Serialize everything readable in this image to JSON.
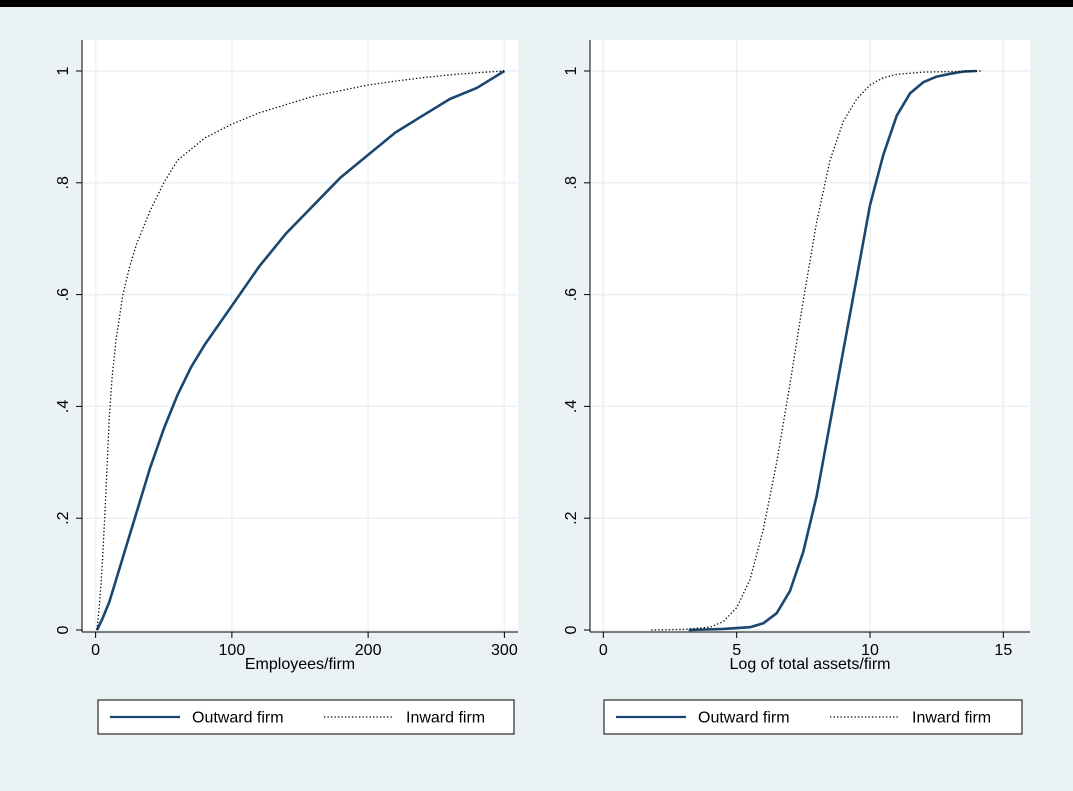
{
  "colors": {
    "outer_background": "#eaf2f3",
    "plot_background": "#ffffff",
    "grid": "#eaf2f3",
    "outward_line": "#1a476f",
    "inward_line": "#000000"
  },
  "chart_data": [
    {
      "type": "line",
      "title": "",
      "xlabel": "Employees/firm",
      "ylabel": "",
      "xlim": [
        -10,
        310
      ],
      "ylim": [
        0,
        1
      ],
      "x_ticks": [
        0,
        100,
        200,
        300
      ],
      "x_tick_labels": [
        "0",
        "100",
        "200",
        "300"
      ],
      "y_ticks": [
        0,
        0.2,
        0.4,
        0.6,
        0.8,
        1
      ],
      "y_tick_labels": [
        "0",
        ".2",
        ".4",
        ".6",
        ".8",
        "1"
      ],
      "grid": true,
      "legend_position": "bottom",
      "series": [
        {
          "name": "Outward firm",
          "style": "solid",
          "x": [
            1,
            5,
            10,
            15,
            20,
            25,
            30,
            40,
            50,
            60,
            70,
            80,
            100,
            120,
            140,
            160,
            180,
            200,
            220,
            240,
            260,
            280,
            300
          ],
          "y": [
            0,
            0.02,
            0.05,
            0.09,
            0.13,
            0.17,
            0.21,
            0.29,
            0.36,
            0.42,
            0.47,
            0.51,
            0.58,
            0.65,
            0.71,
            0.76,
            0.81,
            0.85,
            0.89,
            0.92,
            0.95,
            0.97,
            1.0
          ]
        },
        {
          "name": "Inward firm",
          "style": "dotted",
          "x": [
            1,
            3,
            5,
            7,
            10,
            12,
            15,
            20,
            25,
            30,
            40,
            50,
            60,
            70,
            80,
            100,
            120,
            140,
            160,
            180,
            200,
            220,
            240,
            260,
            280,
            300
          ],
          "y": [
            0,
            0.05,
            0.12,
            0.22,
            0.38,
            0.45,
            0.52,
            0.6,
            0.65,
            0.69,
            0.75,
            0.8,
            0.84,
            0.86,
            0.88,
            0.905,
            0.925,
            0.94,
            0.955,
            0.965,
            0.975,
            0.982,
            0.988,
            0.993,
            0.997,
            1.0
          ]
        }
      ]
    },
    {
      "type": "line",
      "title": "",
      "xlabel": "Log of total assets/firm",
      "ylabel": "",
      "xlim": [
        -0.5,
        16
      ],
      "ylim": [
        0,
        1
      ],
      "x_ticks": [
        0,
        5,
        10,
        15
      ],
      "x_tick_labels": [
        "0",
        "5",
        "10",
        "15"
      ],
      "y_ticks": [
        0,
        0.2,
        0.4,
        0.6,
        0.8,
        1
      ],
      "y_tick_labels": [
        "0",
        ".2",
        ".4",
        ".6",
        ".8",
        "1"
      ],
      "grid": true,
      "legend_position": "bottom",
      "series": [
        {
          "name": "Outward firm",
          "style": "solid",
          "x": [
            3.2,
            4.5,
            5.5,
            6.0,
            6.5,
            7.0,
            7.5,
            8.0,
            8.5,
            9.0,
            9.5,
            10.0,
            10.5,
            11.0,
            11.5,
            12.0,
            12.5,
            13.0,
            13.5,
            14.0
          ],
          "y": [
            0,
            0.002,
            0.005,
            0.012,
            0.03,
            0.07,
            0.14,
            0.24,
            0.37,
            0.5,
            0.63,
            0.76,
            0.85,
            0.92,
            0.96,
            0.98,
            0.99,
            0.995,
            0.999,
            1.0
          ]
        },
        {
          "name": "Inward firm",
          "style": "dotted",
          "x": [
            1.8,
            3.0,
            4.0,
            4.5,
            5.0,
            5.5,
            6.0,
            6.5,
            7.0,
            7.5,
            8.0,
            8.5,
            9.0,
            9.5,
            10.0,
            10.5,
            11.0,
            12.0,
            13.0,
            14.2
          ],
          "y": [
            0,
            0.001,
            0.005,
            0.015,
            0.04,
            0.09,
            0.18,
            0.3,
            0.44,
            0.59,
            0.73,
            0.84,
            0.91,
            0.95,
            0.975,
            0.988,
            0.994,
            0.998,
            0.999,
            1.0
          ]
        }
      ]
    }
  ]
}
